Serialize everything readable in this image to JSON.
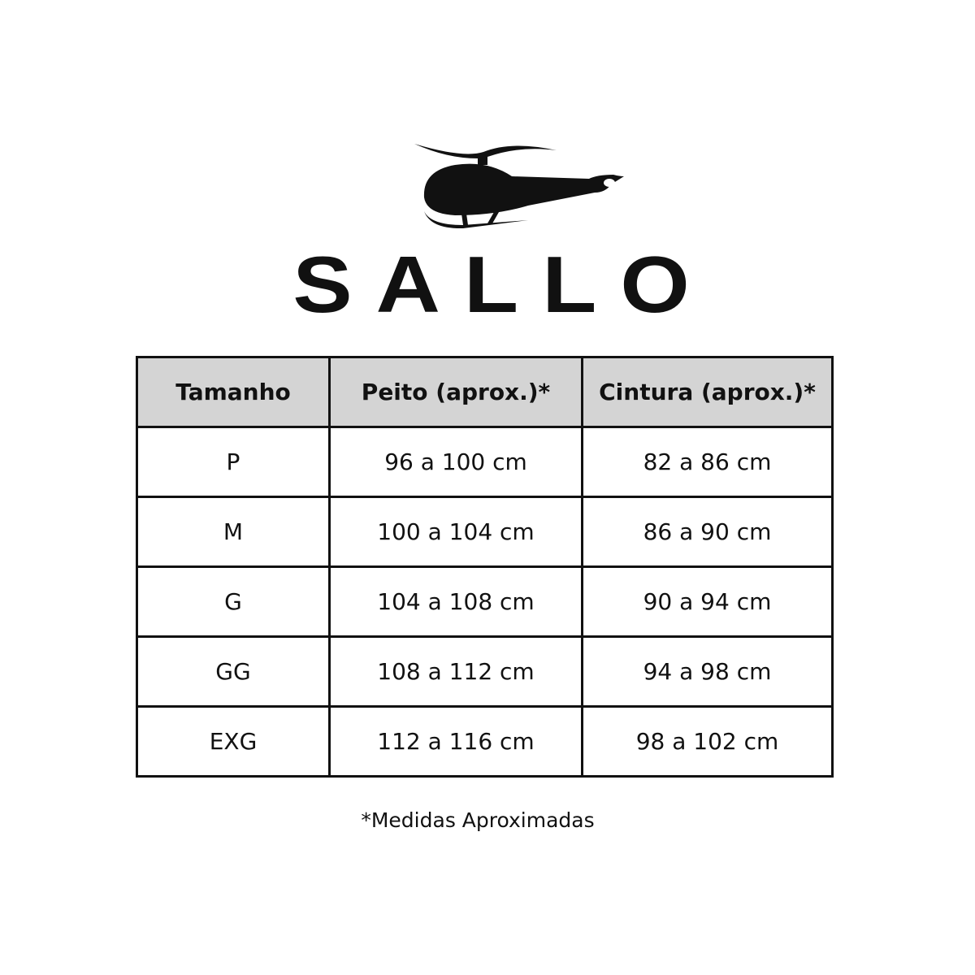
{
  "brand": {
    "name": "SALLO",
    "logo_icon": "helicopter-icon"
  },
  "table": {
    "headers": [
      "Tamanho",
      "Peito (aprox.)*",
      "Cintura (aprox.)*"
    ],
    "rows": [
      [
        "P",
        "96 a 100 cm",
        "82 a 86 cm"
      ],
      [
        "M",
        "100 a 104 cm",
        "86 a 90 cm"
      ],
      [
        "G",
        "104 a 108 cm",
        "90 a 94 cm"
      ],
      [
        "GG",
        "108 a 112 cm",
        "94 a 98 cm"
      ],
      [
        "EXG",
        "112 a 116 cm",
        "98 a 102 cm"
      ]
    ],
    "header_bg": "#d4d4d4"
  },
  "footnote": "*Medidas Aproximadas"
}
